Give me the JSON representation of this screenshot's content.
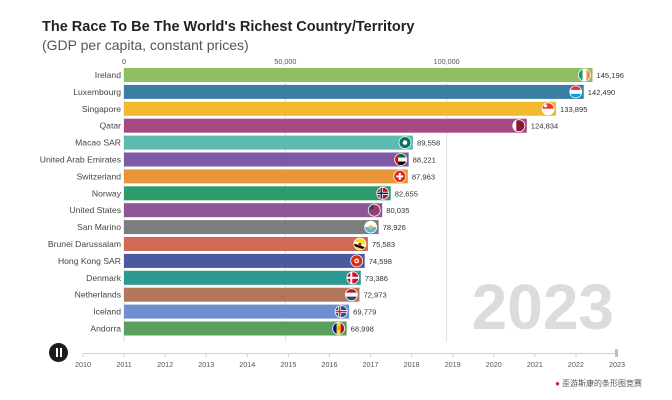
{
  "title": "The Race To Be The World's Richest Country/Territory",
  "subtitle": "(GDP per capita, constant prices)",
  "current_year": "2023",
  "footer_credit": "歪游斯康的条形图竞赛",
  "controls": {
    "play_button_icon": "pause-icon"
  },
  "colors": {
    "year_watermark": "#dcdcdc",
    "credit_dot": "#c4232b"
  },
  "chart_data": {
    "type": "bar",
    "orientation": "horizontal",
    "xlim": [
      0,
      150000
    ],
    "x_ticks": [
      0,
      50000,
      100000
    ],
    "x_tick_labels": [
      "0",
      "50,000",
      "100,000"
    ],
    "categories": [
      "Ireland",
      "Luxembourg",
      "Singapore",
      "Qatar",
      "Macao SAR",
      "United Arab Emirates",
      "Switzerland",
      "Norway",
      "United States",
      "San Marino",
      "Brunei Darussalam",
      "Hong Kong SAR",
      "Denmark",
      "Netherlands",
      "Iceland",
      "Andorra"
    ],
    "values": [
      145196,
      142490,
      133895,
      124834,
      89558,
      88221,
      87963,
      82655,
      80035,
      78926,
      75583,
      74598,
      73386,
      72973,
      69779,
      68998
    ],
    "value_labels": [
      "145,196",
      "142,490",
      "133,895",
      "124,834",
      "89,558",
      "88,221",
      "87,963",
      "82,655",
      "80,035",
      "78,926",
      "75,583",
      "74,598",
      "73,386",
      "72,973",
      "69,779",
      "68,998"
    ],
    "bar_colors": [
      "#8fbf62",
      "#3b7ea1",
      "#f2b92e",
      "#a74a84",
      "#5cbab3",
      "#7b5aa6",
      "#e8953a",
      "#2f9a6c",
      "#8d5694",
      "#7d7d7d",
      "#cf6a56",
      "#4b5aa0",
      "#2c9a92",
      "#b2775a",
      "#6d8fd0",
      "#5a9f5c"
    ],
    "flag_icons": [
      "ireland-flag-icon",
      "luxembourg-flag-icon",
      "singapore-flag-icon",
      "qatar-flag-icon",
      "macao-flag-icon",
      "uae-flag-icon",
      "switzerland-flag-icon",
      "norway-flag-icon",
      "usa-flag-icon",
      "san-marino-flag-icon",
      "brunei-flag-icon",
      "hong-kong-flag-icon",
      "denmark-flag-icon",
      "netherlands-flag-icon",
      "iceland-flag-icon",
      "andorra-flag-icon"
    ],
    "timeline_years": [
      "2010",
      "2011",
      "2012",
      "2013",
      "2014",
      "2015",
      "2016",
      "2017",
      "2018",
      "2019",
      "2020",
      "2021",
      "2022",
      "2023"
    ]
  }
}
